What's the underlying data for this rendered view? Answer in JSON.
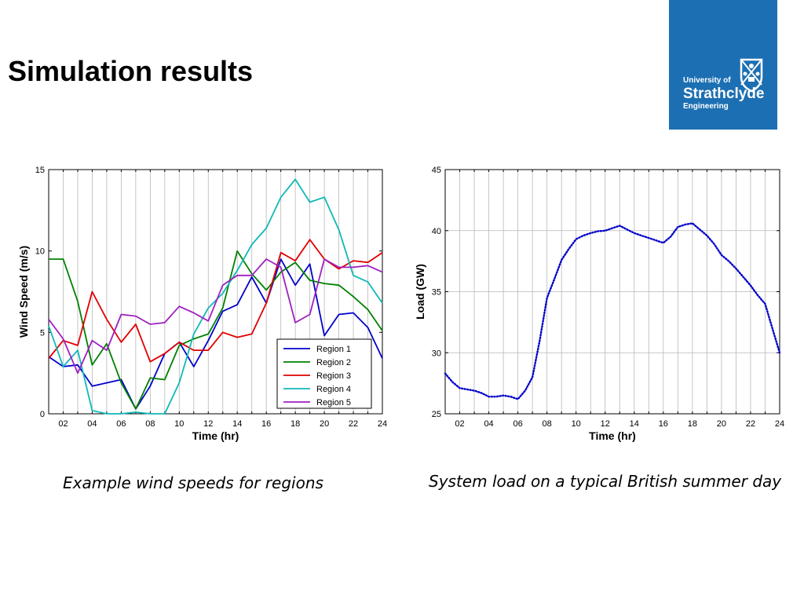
{
  "slide": {
    "title": "Simulation results"
  },
  "logo": {
    "line1": "University of",
    "line2": "Strathclyde",
    "line3": "Engineering",
    "background_color": "#1c6fb2",
    "icon": "university-crest-icon"
  },
  "captions": {
    "left": "Example wind speeds for regions",
    "right": "System load on a typical British summer day"
  },
  "chart_data": [
    {
      "type": "line",
      "title": "",
      "xlabel": "Time (hr)",
      "ylabel": "Wind Speed (m/s)",
      "xlim": [
        1,
        24
      ],
      "ylim": [
        0,
        15
      ],
      "xticks": [
        "02",
        "04",
        "06",
        "08",
        "10",
        "12",
        "14",
        "16",
        "18",
        "20",
        "22",
        "24"
      ],
      "yticks": [
        "0",
        "5",
        "10",
        "15"
      ],
      "grid": "vertical",
      "legend": "bottom-right",
      "x": [
        1,
        2,
        3,
        4,
        5,
        6,
        7,
        8,
        9,
        10,
        11,
        12,
        13,
        14,
        15,
        16,
        17,
        18,
        19,
        20,
        21,
        22,
        23,
        24
      ],
      "series": [
        {
          "name": "Region 1",
          "color": "#0000cc",
          "values": [
            3.5,
            2.9,
            3.0,
            1.7,
            1.9,
            2.1,
            0.3,
            1.7,
            3.7,
            4.4,
            2.9,
            4.5,
            6.3,
            6.7,
            8.4,
            6.8,
            9.5,
            7.9,
            9.2,
            4.8,
            6.1,
            6.2,
            5.3,
            3.4
          ]
        },
        {
          "name": "Region 2",
          "color": "#008000",
          "values": [
            9.5,
            9.5,
            6.9,
            3.0,
            4.3,
            1.9,
            0.3,
            2.2,
            2.1,
            4.2,
            4.6,
            4.9,
            6.5,
            10.0,
            8.6,
            7.6,
            8.7,
            9.3,
            8.2,
            8.0,
            7.9,
            7.2,
            6.4,
            5.1
          ]
        },
        {
          "name": "Region 3",
          "color": "#e00000",
          "values": [
            3.4,
            4.5,
            4.2,
            7.5,
            5.8,
            4.4,
            5.5,
            3.2,
            3.7,
            4.4,
            3.9,
            3.9,
            5.0,
            4.7,
            4.9,
            6.8,
            9.9,
            9.4,
            10.7,
            9.5,
            8.9,
            9.4,
            9.3,
            9.9
          ]
        },
        {
          "name": "Region 4",
          "color": "#10b8b8",
          "values": [
            5.4,
            2.9,
            3.9,
            0.2,
            0.0,
            0.0,
            0.1,
            0.0,
            0.0,
            1.9,
            4.9,
            6.5,
            7.4,
            8.8,
            10.4,
            11.4,
            13.3,
            14.4,
            13.0,
            13.3,
            11.3,
            8.5,
            8.1,
            6.8
          ]
        },
        {
          "name": "Region 5",
          "color": "#a020c0",
          "values": [
            5.8,
            4.6,
            2.5,
            4.5,
            3.9,
            6.1,
            6.0,
            5.5,
            5.6,
            6.6,
            6.2,
            5.7,
            7.9,
            8.5,
            8.5,
            9.5,
            9.0,
            5.6,
            6.1,
            9.5,
            9.0,
            9.0,
            9.1,
            8.7
          ]
        }
      ]
    },
    {
      "type": "line",
      "title": "",
      "xlabel": "Time (hr)",
      "ylabel": "Load (GW)",
      "xlim": [
        1,
        24
      ],
      "ylim": [
        25,
        45
      ],
      "xticks": [
        "02",
        "04",
        "06",
        "08",
        "10",
        "12",
        "14",
        "16",
        "18",
        "20",
        "22",
        "24"
      ],
      "yticks": [
        "25",
        "30",
        "35",
        "40",
        "45"
      ],
      "grid": "both",
      "line_style": "dotted",
      "x": [
        1,
        1.5,
        2,
        2.5,
        3,
        3.5,
        4,
        4.5,
        5,
        5.5,
        6,
        6.5,
        7,
        7.5,
        8,
        8.5,
        9,
        9.5,
        10,
        10.5,
        11,
        11.5,
        12,
        12.5,
        13,
        13.5,
        14,
        14.5,
        15,
        15.5,
        16,
        16.5,
        17,
        17.5,
        18,
        18.5,
        19,
        19.5,
        20,
        20.5,
        21,
        21.5,
        22,
        22.5,
        23,
        23.5,
        24
      ],
      "series": [
        {
          "name": "",
          "color": "#0000cc",
          "values": [
            28.3,
            27.6,
            27.1,
            27.0,
            26.9,
            26.7,
            26.4,
            26.4,
            26.5,
            26.4,
            26.2,
            26.9,
            28.0,
            31.0,
            34.5,
            36.0,
            37.6,
            38.5,
            39.3,
            39.6,
            39.8,
            39.95,
            40.0,
            40.2,
            40.4,
            40.1,
            39.8,
            39.6,
            39.4,
            39.2,
            39.0,
            39.5,
            40.3,
            40.5,
            40.6,
            40.1,
            39.6,
            38.9,
            38.0,
            37.5,
            36.9,
            36.2,
            35.5,
            34.7,
            34.0,
            32.0,
            30.0
          ]
        }
      ]
    }
  ]
}
